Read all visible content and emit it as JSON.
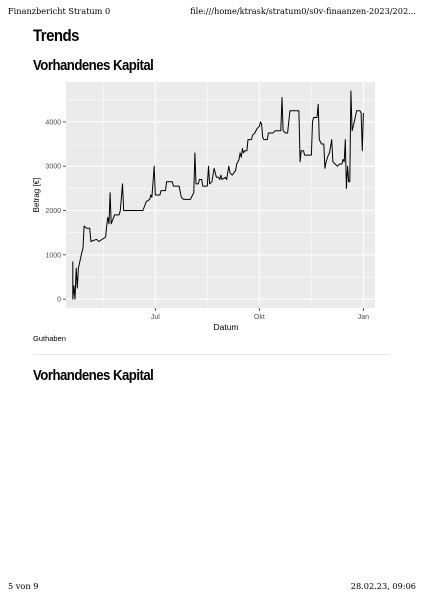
{
  "browser": {
    "title": "Finanzbericht Stratum 0",
    "url": "file:///home/ktrask/stratum0/s0v-finaanzen-2023/202...",
    "page": "5 von 9",
    "datetime": "28.02.23, 09:06"
  },
  "page": {
    "heading": "Trends",
    "section_title": "Vorhandenes Kapital",
    "caption": "Guthaben",
    "section_title_2": "Vorhandenes Kapital"
  },
  "colors": {
    "panel_bg": "#ebebeb",
    "grid": "#ffffff",
    "line": "#000000"
  },
  "chart_data": {
    "type": "line",
    "xlabel": "Datum",
    "ylabel": "Betrag [€]",
    "title": "",
    "xlim": [
      "2022-04-13",
      "2023-01-21"
    ],
    "ylim": [
      -200,
      4900
    ],
    "x_ticks": [
      {
        "date": "2022-07-01",
        "label": "Jul"
      },
      {
        "date": "2022-10-01",
        "label": "Okt"
      },
      {
        "date": "2023-01-01",
        "label": "Jan"
      }
    ],
    "y_ticks": [
      0,
      1000,
      2000,
      3000,
      4000
    ],
    "grid": true,
    "series": [
      {
        "values": [
          [
            "2022-04-19",
            850
          ],
          [
            "2022-04-19",
            0
          ],
          [
            "2022-04-20",
            300
          ],
          [
            "2022-04-21",
            0
          ],
          [
            "2022-04-22",
            700
          ],
          [
            "2022-04-23",
            250
          ],
          [
            "2022-04-24",
            700
          ],
          [
            "2022-04-27",
            1050
          ],
          [
            "2022-04-28",
            1150
          ],
          [
            "2022-04-29",
            1650
          ],
          [
            "2022-05-01",
            1600
          ],
          [
            "2022-05-04",
            1600
          ],
          [
            "2022-05-05",
            1300
          ],
          [
            "2022-05-10",
            1350
          ],
          [
            "2022-05-12",
            1300
          ],
          [
            "2022-05-18",
            1400
          ],
          [
            "2022-05-19",
            1650
          ],
          [
            "2022-05-20",
            1850
          ],
          [
            "2022-05-21",
            1700
          ],
          [
            "2022-05-22",
            2400
          ],
          [
            "2022-05-23",
            1700
          ],
          [
            "2022-05-26",
            1900
          ],
          [
            "2022-05-30",
            1900
          ],
          [
            "2022-05-31",
            2000
          ],
          [
            "2022-06-02",
            2600
          ],
          [
            "2022-06-03",
            2000
          ],
          [
            "2022-06-14",
            2000
          ],
          [
            "2022-06-20",
            2000
          ],
          [
            "2022-06-23",
            2200
          ],
          [
            "2022-06-26",
            2250
          ],
          [
            "2022-06-27",
            2350
          ],
          [
            "2022-06-28",
            2300
          ],
          [
            "2022-06-30",
            3000
          ],
          [
            "2022-07-01",
            2350
          ],
          [
            "2022-07-05",
            2350
          ],
          [
            "2022-07-06",
            2450
          ],
          [
            "2022-07-10",
            2450
          ],
          [
            "2022-07-11",
            2650
          ],
          [
            "2022-07-16",
            2650
          ],
          [
            "2022-07-17",
            2550
          ],
          [
            "2022-07-22",
            2550
          ],
          [
            "2022-07-24",
            2300
          ],
          [
            "2022-07-26",
            2250
          ],
          [
            "2022-08-01",
            2250
          ],
          [
            "2022-08-03",
            2350
          ],
          [
            "2022-08-04",
            2400
          ],
          [
            "2022-08-05",
            3300
          ],
          [
            "2022-08-06",
            2600
          ],
          [
            "2022-08-08",
            2600
          ],
          [
            "2022-08-09",
            2700
          ],
          [
            "2022-08-11",
            2700
          ],
          [
            "2022-08-12",
            2550
          ],
          [
            "2022-08-16",
            2550
          ],
          [
            "2022-08-17",
            3000
          ],
          [
            "2022-08-18",
            2600
          ],
          [
            "2022-08-20",
            2650
          ],
          [
            "2022-08-22",
            2950
          ],
          [
            "2022-08-24",
            2750
          ],
          [
            "2022-08-26",
            2750
          ],
          [
            "2022-08-27",
            2700
          ],
          [
            "2022-08-28",
            2800
          ],
          [
            "2022-08-29",
            2700
          ],
          [
            "2022-09-01",
            2750
          ],
          [
            "2022-09-02",
            2700
          ],
          [
            "2022-09-04",
            3000
          ],
          [
            "2022-09-05",
            2850
          ],
          [
            "2022-09-07",
            2800
          ],
          [
            "2022-09-10",
            2900
          ],
          [
            "2022-09-11",
            3050
          ],
          [
            "2022-09-12",
            3100
          ],
          [
            "2022-09-13",
            3150
          ],
          [
            "2022-09-14",
            3300
          ],
          [
            "2022-09-15",
            3200
          ],
          [
            "2022-09-16",
            3400
          ],
          [
            "2022-09-17",
            3300
          ],
          [
            "2022-09-18",
            3350
          ],
          [
            "2022-09-20",
            3350
          ],
          [
            "2022-09-21",
            3600
          ],
          [
            "2022-09-24",
            3600
          ],
          [
            "2022-09-25",
            3700
          ],
          [
            "2022-09-27",
            3750
          ],
          [
            "2022-09-29",
            3850
          ],
          [
            "2022-10-01",
            3900
          ],
          [
            "2022-10-02",
            4000
          ],
          [
            "2022-10-03",
            3950
          ],
          [
            "2022-10-04",
            3650
          ],
          [
            "2022-10-05",
            3600
          ],
          [
            "2022-10-08",
            3600
          ],
          [
            "2022-10-09",
            3750
          ],
          [
            "2022-10-13",
            3750
          ],
          [
            "2022-10-15",
            3800
          ],
          [
            "2022-10-20",
            3800
          ],
          [
            "2022-10-21",
            4550
          ],
          [
            "2022-10-22",
            3800
          ],
          [
            "2022-10-24",
            3750
          ],
          [
            "2022-10-26",
            3750
          ],
          [
            "2022-10-28",
            4250
          ],
          [
            "2022-11-01",
            4250
          ],
          [
            "2022-11-05",
            4250
          ],
          [
            "2022-11-06",
            3100
          ],
          [
            "2022-11-07",
            3350
          ],
          [
            "2022-11-09",
            3350
          ],
          [
            "2022-11-10",
            3250
          ],
          [
            "2022-11-16",
            3250
          ],
          [
            "2022-11-17",
            4000
          ],
          [
            "2022-11-18",
            4100
          ],
          [
            "2022-11-21",
            4100
          ],
          [
            "2022-11-22",
            4400
          ],
          [
            "2022-11-23",
            3600
          ],
          [
            "2022-11-25",
            3500
          ],
          [
            "2022-11-27",
            3500
          ],
          [
            "2022-11-28",
            2950
          ],
          [
            "2022-11-29",
            3100
          ],
          [
            "2022-12-01",
            3250
          ],
          [
            "2022-12-02",
            3300
          ],
          [
            "2022-12-04",
            3600
          ],
          [
            "2022-12-05",
            3100
          ],
          [
            "2022-12-07",
            3050
          ],
          [
            "2022-12-09",
            3000
          ],
          [
            "2022-12-11",
            3050
          ],
          [
            "2022-12-13",
            3050
          ],
          [
            "2022-12-14",
            3150
          ],
          [
            "2022-12-15",
            3100
          ],
          [
            "2022-12-16",
            3600
          ],
          [
            "2022-12-17",
            2500
          ],
          [
            "2022-12-18",
            3000
          ],
          [
            "2022-12-19",
            2650
          ],
          [
            "2022-12-20",
            2650
          ],
          [
            "2022-12-21",
            4700
          ],
          [
            "2022-12-22",
            3800
          ],
          [
            "2022-12-23",
            3900
          ],
          [
            "2022-12-24",
            4000
          ],
          [
            "2022-12-26",
            4250
          ],
          [
            "2022-12-29",
            4250
          ],
          [
            "2022-12-30",
            4200
          ],
          [
            "2022-12-31",
            3350
          ],
          [
            "2023-01-01",
            4200
          ]
        ]
      }
    ]
  }
}
